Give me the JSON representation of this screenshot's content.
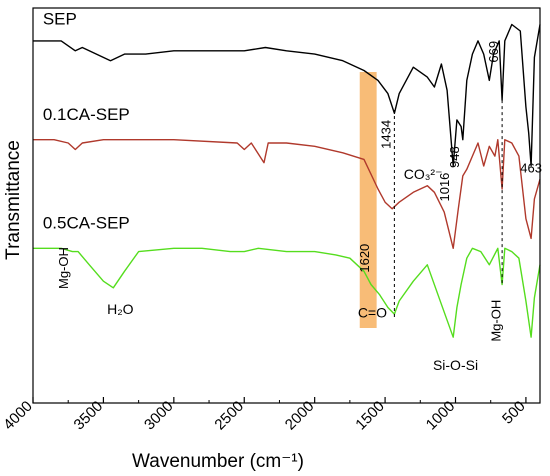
{
  "chart_data": {
    "type": "line",
    "title": "",
    "xlabel": "Wavenumber (cm⁻¹)",
    "ylabel": "Transmittance",
    "xlim": [
      4000,
      400
    ],
    "x_reversed": true,
    "y_ticks_shown": false,
    "x_ticks": [
      4000,
      3500,
      3000,
      2500,
      2000,
      1500,
      1000,
      500
    ],
    "x_tick_labels": [
      "4000",
      "3500",
      "3000",
      "2500",
      "2000",
      "1500",
      "1000",
      "500"
    ],
    "highlight_band": {
      "from": 1680,
      "to": 1560,
      "color": "#f5a54a",
      "label": "1620"
    },
    "series": [
      {
        "name": "SEP",
        "color": "#000000",
        "points": [
          [
            4000,
            0.9
          ],
          [
            3800,
            0.9
          ],
          [
            3700,
            0.87
          ],
          [
            3650,
            0.88
          ],
          [
            3550,
            0.86
          ],
          [
            3450,
            0.84
          ],
          [
            3350,
            0.86
          ],
          [
            3200,
            0.86
          ],
          [
            3000,
            0.87
          ],
          [
            2800,
            0.87
          ],
          [
            2500,
            0.87
          ],
          [
            2350,
            0.88
          ],
          [
            2200,
            0.87
          ],
          [
            2000,
            0.86
          ],
          [
            1800,
            0.84
          ],
          [
            1650,
            0.81
          ],
          [
            1550,
            0.78
          ],
          [
            1480,
            0.74
          ],
          [
            1434,
            0.68
          ],
          [
            1400,
            0.74
          ],
          [
            1300,
            0.82
          ],
          [
            1200,
            0.79
          ],
          [
            1150,
            0.76
          ],
          [
            1100,
            0.83
          ],
          [
            1060,
            0.75
          ],
          [
            1016,
            0.52
          ],
          [
            990,
            0.66
          ],
          [
            960,
            0.64
          ],
          [
            948,
            0.6
          ],
          [
            920,
            0.78
          ],
          [
            880,
            0.86
          ],
          [
            840,
            0.9
          ],
          [
            800,
            0.86
          ],
          [
            760,
            0.78
          ],
          [
            730,
            0.86
          ],
          [
            690,
            0.9
          ],
          [
            669,
            0.72
          ],
          [
            650,
            0.9
          ],
          [
            600,
            0.95
          ],
          [
            540,
            0.93
          ],
          [
            500,
            0.7
          ],
          [
            480,
            0.62
          ],
          [
            463,
            0.52
          ],
          [
            440,
            0.85
          ],
          [
            400,
            0.95
          ]
        ]
      },
      {
        "name": "0.1CA-SEP",
        "color": "#b0392c",
        "points": [
          [
            4000,
            0.6
          ],
          [
            3850,
            0.6
          ],
          [
            3750,
            0.59
          ],
          [
            3700,
            0.57
          ],
          [
            3650,
            0.59
          ],
          [
            3500,
            0.6
          ],
          [
            3000,
            0.6
          ],
          [
            2550,
            0.59
          ],
          [
            2500,
            0.57
          ],
          [
            2450,
            0.59
          ],
          [
            2360,
            0.53
          ],
          [
            2330,
            0.59
          ],
          [
            2200,
            0.59
          ],
          [
            2000,
            0.58
          ],
          [
            1800,
            0.56
          ],
          [
            1650,
            0.54
          ],
          [
            1550,
            0.45
          ],
          [
            1500,
            0.41
          ],
          [
            1450,
            0.39
          ],
          [
            1400,
            0.41
          ],
          [
            1300,
            0.44
          ],
          [
            1200,
            0.46
          ],
          [
            1150,
            0.44
          ],
          [
            1080,
            0.38
          ],
          [
            1016,
            0.27
          ],
          [
            980,
            0.39
          ],
          [
            948,
            0.49
          ],
          [
            920,
            0.51
          ],
          [
            880,
            0.55
          ],
          [
            840,
            0.59
          ],
          [
            800,
            0.52
          ],
          [
            760,
            0.58
          ],
          [
            720,
            0.55
          ],
          [
            700,
            0.6
          ],
          [
            669,
            0.45
          ],
          [
            650,
            0.6
          ],
          [
            600,
            0.59
          ],
          [
            550,
            0.55
          ],
          [
            500,
            0.36
          ],
          [
            463,
            0.3
          ],
          [
            440,
            0.42
          ],
          [
            400,
            0.48
          ]
        ]
      },
      {
        "name": "0.5CA-SEP",
        "color": "#55dd1e",
        "points": [
          [
            4000,
            0.27
          ],
          [
            3800,
            0.27
          ],
          [
            3720,
            0.26
          ],
          [
            3680,
            0.26
          ],
          [
            3600,
            0.22
          ],
          [
            3500,
            0.17
          ],
          [
            3430,
            0.15
          ],
          [
            3350,
            0.2
          ],
          [
            3250,
            0.26
          ],
          [
            3000,
            0.27
          ],
          [
            2800,
            0.27
          ],
          [
            2600,
            0.26
          ],
          [
            2500,
            0.26
          ],
          [
            2400,
            0.27
          ],
          [
            2200,
            0.26
          ],
          [
            2000,
            0.26
          ],
          [
            1850,
            0.25
          ],
          [
            1750,
            0.24
          ],
          [
            1650,
            0.2
          ],
          [
            1600,
            0.16
          ],
          [
            1540,
            0.13
          ],
          [
            1480,
            0.09
          ],
          [
            1434,
            0.07
          ],
          [
            1400,
            0.11
          ],
          [
            1300,
            0.17
          ],
          [
            1200,
            0.22
          ],
          [
            1100,
            0.1
          ],
          [
            1016,
            0.0
          ],
          [
            990,
            0.09
          ],
          [
            960,
            0.16
          ],
          [
            920,
            0.24
          ],
          [
            880,
            0.27
          ],
          [
            820,
            0.26
          ],
          [
            760,
            0.22
          ],
          [
            700,
            0.27
          ],
          [
            669,
            0.16
          ],
          [
            650,
            0.27
          ],
          [
            600,
            0.26
          ],
          [
            550,
            0.24
          ],
          [
            500,
            0.11
          ],
          [
            463,
            0.0
          ],
          [
            440,
            0.12
          ],
          [
            400,
            0.22
          ]
        ]
      }
    ],
    "series_labels": [
      {
        "text": "SEP",
        "x": 3930,
        "y": 0.95
      },
      {
        "text": "0.1CA-SEP",
        "x": 3930,
        "y": 0.66
      },
      {
        "text": "0.5CA-SEP",
        "x": 3930,
        "y": 0.33
      }
    ],
    "peak_labels": [
      {
        "text": "1434",
        "x": 1434,
        "y": 0.66,
        "rotate": true
      },
      {
        "text": "1016",
        "x": 1016,
        "y": 0.5,
        "rotate": true
      },
      {
        "text": "948",
        "x": 948,
        "y": 0.58,
        "rotate": true
      },
      {
        "text": "669",
        "x": 669,
        "y": 0.9,
        "rotate": true
      },
      {
        "text": "463",
        "x": 463,
        "y": 0.5,
        "rotate": false
      }
    ],
    "guide_lines": [
      {
        "x": 1434,
        "y_from": 0.69,
        "y_to": 0.06
      },
      {
        "x": 669,
        "y_from": 0.72,
        "y_to": 0.16
      }
    ],
    "annotations": [
      {
        "text": "CO₃²⁻",
        "x": 1230,
        "y": 0.48,
        "rotate": false
      },
      {
        "text": "1620",
        "x": 1615,
        "y": 0.24,
        "rotate": true
      },
      {
        "text": "C=O",
        "x": 1590,
        "y": 0.06,
        "rotate": false
      },
      {
        "text": "Mg-OH",
        "x": 3750,
        "y": 0.21,
        "rotate": true
      },
      {
        "text": "H₂O",
        "x": 3380,
        "y": 0.07,
        "rotate": false
      },
      {
        "text": "Si-O-Si",
        "x": 1000,
        "y": -0.1,
        "rotate": false
      },
      {
        "text": "Mg-OH",
        "x": 680,
        "y": 0.05,
        "rotate": true
      }
    ]
  }
}
